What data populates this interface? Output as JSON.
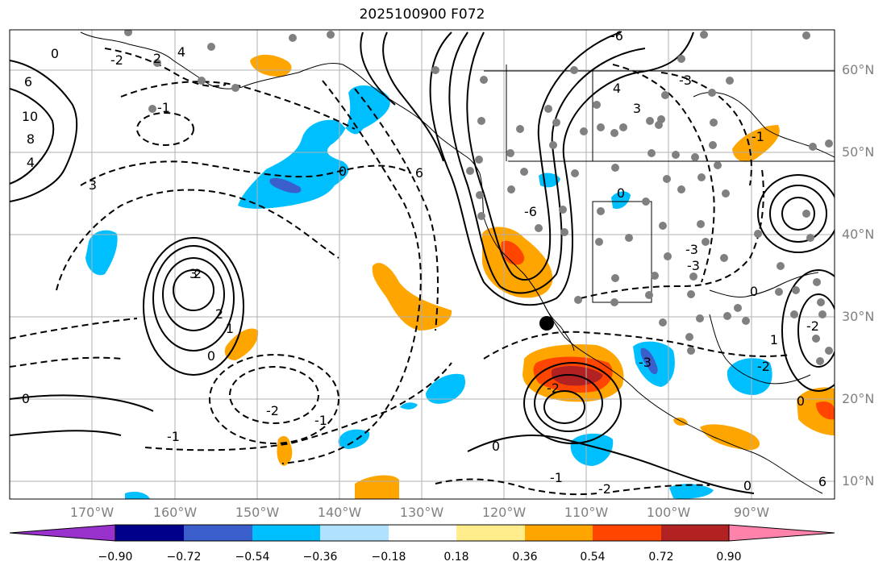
{
  "title": "2025100900 F072",
  "latitude_labels": [
    "60°N",
    "50°N",
    "40°N",
    "30°N",
    "20°N",
    "10°N"
  ],
  "longitude_labels": [
    "170°W",
    "160°W",
    "150°W",
    "140°W",
    "130°W",
    "120°W",
    "110°W",
    "100°W",
    "90°W"
  ],
  "colorbar": {
    "tick_labels": [
      "−0.90",
      "−0.72",
      "−0.54",
      "−0.36",
      "−0.18",
      "0.18",
      "0.36",
      "0.54",
      "0.72",
      "0.90"
    ],
    "colors": [
      "#9932cc",
      "#00008b",
      "#3a5fcd",
      "#00bfff",
      "#b0e2ff",
      "#ffffff",
      "#ffec8b",
      "#ffa500",
      "#ff4500",
      "#b22222",
      "#ff82ab"
    ]
  },
  "contour_labels": [
    "0",
    "2",
    "4",
    "6",
    "10",
    "8",
    "4",
    "3",
    "-2",
    "-1",
    "2",
    "0",
    "6",
    "-6",
    "4",
    "3",
    "0",
    "-6",
    "3",
    "2",
    "1",
    "0",
    "-2",
    "-1",
    "0",
    "-2",
    "-1",
    "-2",
    "0",
    "-1",
    "0",
    "6",
    "-3",
    "-3",
    "-3",
    "0",
    "-2",
    "1",
    "0",
    "-2",
    "-1",
    "-3"
  ],
  "shading_colors": {
    "light_blue": "#00bfff",
    "medium_blue": "#3a5fcd",
    "orange": "#ffa500",
    "red_orange": "#ff4500",
    "dark_red": "#b22222"
  }
}
